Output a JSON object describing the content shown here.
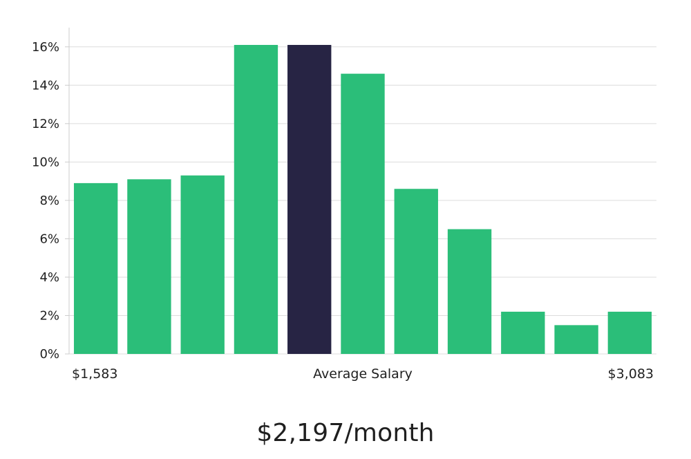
{
  "chart_data": {
    "type": "bar",
    "series": [
      {
        "values": [
          8.9,
          9.1,
          9.3,
          16.1,
          16.1,
          14.6,
          8.6,
          6.5,
          2.2,
          1.5,
          2.2
        ]
      }
    ],
    "highlight_index": 4,
    "ylim": [
      0,
      17
    ],
    "y_ticks": [
      0,
      2,
      4,
      6,
      8,
      10,
      12,
      14,
      16
    ],
    "y_tick_format": "%",
    "x_labels": {
      "left": "$1,583",
      "center": "Average Salary",
      "right": "$3,083"
    },
    "grid": true,
    "colors": {
      "bar": "#2bbe79",
      "highlight": "#272444",
      "grid": "#dcdcdc",
      "axis": "#cccccc"
    }
  },
  "headline": {
    "salary": "$2,197/month"
  }
}
